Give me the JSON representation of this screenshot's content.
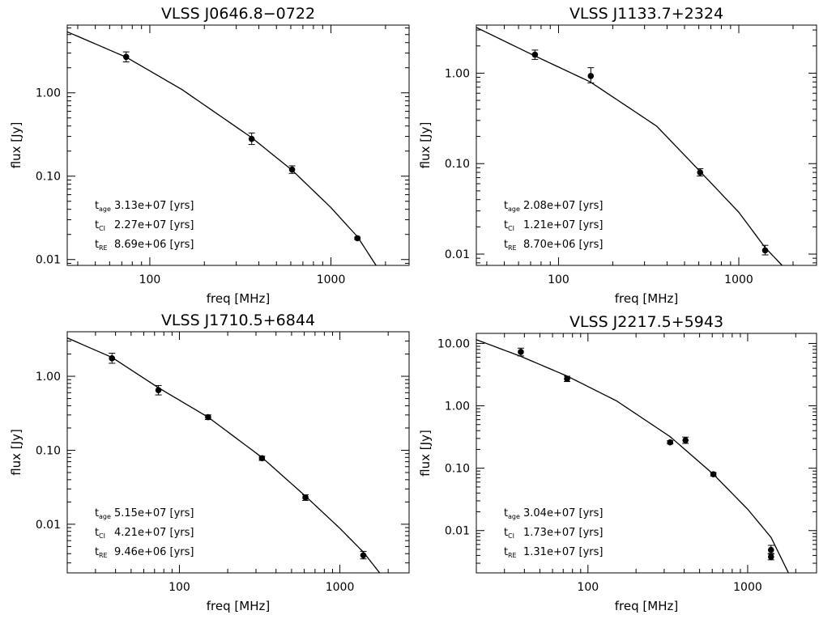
{
  "chart_data": [
    {
      "type": "scatter",
      "title": "VLSS J0646.8−0722",
      "xlabel": "freq [MHz]",
      "ylabel": "flux [Jy]",
      "xscale": "log",
      "yscale": "log",
      "xlim": [
        35,
        2700
      ],
      "ylim": [
        0.0085,
        6.5
      ],
      "xticks": [
        "100",
        "1000"
      ],
      "yticks": [
        "0.01",
        "0.10",
        "1.00"
      ],
      "points": [
        {
          "x": 74,
          "y": 2.7,
          "err": [
            2.35,
            3.1
          ]
        },
        {
          "x": 365,
          "y": 0.28,
          "err": [
            0.24,
            0.33
          ]
        },
        {
          "x": 610,
          "y": 0.12,
          "err": [
            0.108,
            0.133
          ]
        },
        {
          "x": 1400,
          "y": 0.018,
          "err": [
            0.0174,
            0.0186
          ]
        }
      ],
      "curve": [
        [
          35,
          5.4
        ],
        [
          74,
          2.68
        ],
        [
          150,
          1.1
        ],
        [
          365,
          0.29
        ],
        [
          610,
          0.118
        ],
        [
          1000,
          0.042
        ],
        [
          1400,
          0.0188
        ],
        [
          1800,
          0.0081
        ]
      ],
      "annotations": [
        {
          "sym": "t",
          "sub": "age",
          "text": "3.13e+07 [yrs]"
        },
        {
          "sym": "t",
          "sub": "CI",
          "text": "2.27e+07 [yrs]"
        },
        {
          "sym": "t",
          "sub": "RE",
          "text": "8.69e+06 [yrs]"
        }
      ]
    },
    {
      "type": "scatter",
      "title": "VLSS J1133.7+2324",
      "xlabel": "freq [MHz]",
      "ylabel": "flux [Jy]",
      "xscale": "log",
      "yscale": "log",
      "xlim": [
        35,
        2700
      ],
      "ylim": [
        0.0075,
        3.4
      ],
      "xticks": [
        "100",
        "1000"
      ],
      "yticks": [
        "0.01",
        "0.10",
        "1.00"
      ],
      "points": [
        {
          "x": 74,
          "y": 1.6,
          "err": [
            1.42,
            1.8
          ]
        },
        {
          "x": 151,
          "y": 0.93,
          "err": [
            0.78,
            1.15
          ]
        },
        {
          "x": 610,
          "y": 0.08,
          "err": [
            0.073,
            0.088
          ]
        },
        {
          "x": 1400,
          "y": 0.011,
          "err": [
            0.0098,
            0.0125
          ]
        }
      ],
      "curve": [
        [
          35,
          3.2
        ],
        [
          74,
          1.55
        ],
        [
          150,
          0.8
        ],
        [
          350,
          0.26
        ],
        [
          610,
          0.082
        ],
        [
          1000,
          0.029
        ],
        [
          1400,
          0.0118
        ],
        [
          1750,
          0.0074
        ]
      ],
      "annotations": [
        {
          "sym": "t",
          "sub": "age",
          "text": "2.08e+07 [yrs]"
        },
        {
          "sym": "t",
          "sub": "CI",
          "text": "1.21e+07 [yrs]"
        },
        {
          "sym": "t",
          "sub": "RE",
          "text": "8.70e+06 [yrs]"
        }
      ]
    },
    {
      "type": "scatter",
      "title": "VLSS J1710.5+6844",
      "xlabel": "freq [MHz]",
      "ylabel": "flux [Jy]",
      "xscale": "log",
      "yscale": "log",
      "xlim": [
        20,
        2700
      ],
      "ylim": [
        0.0022,
        4.0
      ],
      "xticks": [
        "100",
        "1000"
      ],
      "yticks": [
        "0.01",
        "0.10",
        "1.00"
      ],
      "points": [
        {
          "x": 38,
          "y": 1.75,
          "err": [
            1.5,
            2.05
          ]
        },
        {
          "x": 74,
          "y": 0.65,
          "err": [
            0.56,
            0.75
          ]
        },
        {
          "x": 151,
          "y": 0.28,
          "err": [
            0.26,
            0.3
          ]
        },
        {
          "x": 327,
          "y": 0.078,
          "err": [
            0.073,
            0.083
          ]
        },
        {
          "x": 610,
          "y": 0.023,
          "err": [
            0.021,
            0.025
          ]
        },
        {
          "x": 1400,
          "y": 0.0038,
          "err": [
            0.0034,
            0.0043
          ]
        }
      ],
      "curve": [
        [
          20,
          3.3
        ],
        [
          38,
          1.8
        ],
        [
          74,
          0.7
        ],
        [
          151,
          0.28
        ],
        [
          327,
          0.08
        ],
        [
          610,
          0.024
        ],
        [
          1000,
          0.0088
        ],
        [
          1400,
          0.0042
        ],
        [
          1800,
          0.0021
        ]
      ],
      "annotations": [
        {
          "sym": "t",
          "sub": "age",
          "text": "5.15e+07 [yrs]"
        },
        {
          "sym": "t",
          "sub": "CI",
          "text": "4.21e+07 [yrs]"
        },
        {
          "sym": "t",
          "sub": "RE",
          "text": "9.46e+06 [yrs]"
        }
      ]
    },
    {
      "type": "scatter",
      "title": "VLSS J2217.5+5943",
      "xlabel": "freq [MHz]",
      "ylabel": "flux [Jy]",
      "xscale": "log",
      "yscale": "log",
      "xlim": [
        20,
        2700
      ],
      "ylim": [
        0.0021,
        14.5
      ],
      "xticks": [
        "100",
        "1000"
      ],
      "yticks": [
        "0.01",
        "0.10",
        "1.00",
        "10.00"
      ],
      "points": [
        {
          "x": 38,
          "y": 7.3,
          "err": [
            6.3,
            8.4
          ]
        },
        {
          "x": 74,
          "y": 2.7,
          "err": [
            2.45,
            2.98
          ]
        },
        {
          "x": 327,
          "y": 0.26,
          "err": [
            0.245,
            0.276
          ]
        },
        {
          "x": 408,
          "y": 0.28,
          "err": [
            0.25,
            0.315
          ]
        },
        {
          "x": 610,
          "y": 0.08,
          "err": [
            0.075,
            0.085
          ]
        },
        {
          "x": 1400,
          "y": 0.0049,
          "err": [
            0.0042,
            0.0058
          ]
        },
        {
          "x": 1400,
          "y": 0.0038,
          "err": [
            0.0034,
            0.0043
          ]
        }
      ],
      "curve": [
        [
          20,
          11.5
        ],
        [
          38,
          6.2
        ],
        [
          74,
          3.0
        ],
        [
          151,
          1.2
        ],
        [
          327,
          0.32
        ],
        [
          610,
          0.08
        ],
        [
          1000,
          0.022
        ],
        [
          1400,
          0.0078
        ],
        [
          1800,
          0.0021
        ]
      ],
      "annotations": [
        {
          "sym": "t",
          "sub": "age",
          "text": "3.04e+07 [yrs]"
        },
        {
          "sym": "t",
          "sub": "CI",
          "text": "1.73e+07 [yrs]"
        },
        {
          "sym": "t",
          "sub": "RE",
          "text": "1.31e+07 [yrs]"
        }
      ]
    }
  ]
}
